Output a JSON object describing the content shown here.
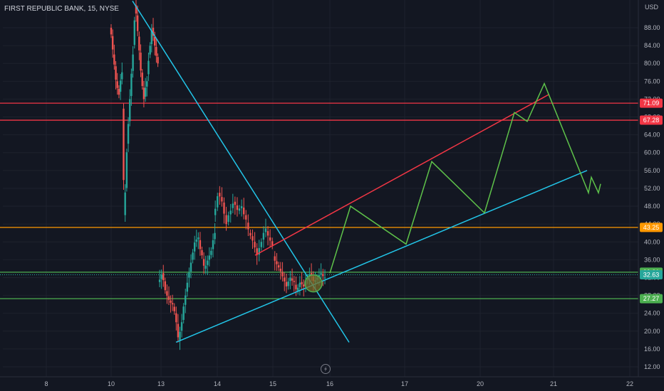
{
  "header": {
    "symbol_title": "FIRST REPUBLIC BANK, 15, NYSE",
    "currency": "USD"
  },
  "colors": {
    "background": "#131722",
    "grid": "#1e222d",
    "axis_text": "#b2b5be",
    "candle_up": "#26a69a",
    "candle_down": "#ef5350",
    "resistance_red": "#f23645",
    "level_orange": "#ff9800",
    "support_green": "#4caf50",
    "trend_cyan": "#22c5e8",
    "projection_green": "#5ec24a",
    "channel_red": "#f23645"
  },
  "chart_data": {
    "type": "candlestick",
    "title": "FIRST REPUBLIC BANK, 15, NYSE",
    "ylabel": "USD",
    "y_ticks": [
      12.0,
      16.0,
      20.0,
      24.0,
      28.0,
      32.0,
      36.0,
      40.0,
      44.0,
      48.0,
      52.0,
      56.0,
      60.0,
      64.0,
      68.0,
      72.0,
      76.0,
      80.0,
      84.0,
      88.0
    ],
    "x_ticks": [
      "8",
      "10",
      "13",
      "14",
      "15",
      "16",
      "17",
      "20",
      "21",
      "22"
    ],
    "ylim": [
      10,
      94
    ],
    "grid": true,
    "price_levels": [
      {
        "label": "71.09",
        "value": 71.09,
        "color": "#f23645"
      },
      {
        "label": "67.28",
        "value": 67.28,
        "color": "#f23645"
      },
      {
        "label": "43.25",
        "value": 43.25,
        "color": "#ff9800"
      },
      {
        "label": "33.21",
        "value": 33.21,
        "color": "#4caf50"
      },
      {
        "label": "32.63",
        "value": 32.63,
        "color": "#26a69a",
        "dotted": true
      },
      {
        "label": "27.27",
        "value": 27.27,
        "color": "#4caf50"
      }
    ],
    "price_path": [
      [
        "10",
        88
      ],
      [
        "10",
        82
      ],
      [
        "10",
        76
      ],
      [
        "10",
        73
      ],
      [
        "10",
        78
      ],
      [
        "10",
        46
      ],
      [
        "10",
        62
      ],
      [
        "10",
        72
      ],
      [
        "10",
        82
      ],
      [
        "10",
        93
      ],
      [
        "10",
        86
      ],
      [
        "10",
        78
      ],
      [
        "10",
        72
      ],
      [
        "10",
        76
      ],
      [
        "10",
        82
      ],
      [
        "10",
        88
      ],
      [
        "10",
        84
      ],
      [
        "10",
        80
      ],
      [
        "13",
        31
      ],
      [
        "13",
        33
      ],
      [
        "13",
        29
      ],
      [
        "13",
        27
      ],
      [
        "13",
        26
      ],
      [
        "13",
        24
      ],
      [
        "13",
        18
      ],
      [
        "13",
        22
      ],
      [
        "13",
        28
      ],
      [
        "13",
        32
      ],
      [
        "13",
        36
      ],
      [
        "13",
        40
      ],
      [
        "13",
        41
      ],
      [
        "13",
        37
      ],
      [
        "13",
        34
      ],
      [
        "13",
        36
      ],
      [
        "13",
        38
      ],
      [
        "13",
        42
      ],
      [
        "14",
        46
      ],
      [
        "14",
        51
      ],
      [
        "14",
        49
      ],
      [
        "14",
        44
      ],
      [
        "14",
        47
      ],
      [
        "14",
        49
      ],
      [
        "14",
        47
      ],
      [
        "14",
        48
      ],
      [
        "14",
        45
      ],
      [
        "14",
        42
      ],
      [
        "14",
        40
      ],
      [
        "14",
        37
      ],
      [
        "14",
        40
      ],
      [
        "14",
        43
      ],
      [
        "14",
        41
      ],
      [
        "14",
        39
      ],
      [
        "15",
        37
      ],
      [
        "15",
        35
      ],
      [
        "15",
        34
      ],
      [
        "15",
        32
      ],
      [
        "15",
        30
      ],
      [
        "15",
        32
      ],
      [
        "15",
        31
      ],
      [
        "15",
        29
      ],
      [
        "15",
        31
      ],
      [
        "15",
        30
      ],
      [
        "15",
        32
      ],
      [
        "15",
        33
      ],
      [
        "15",
        31
      ],
      [
        "15",
        32
      ],
      [
        "15",
        33
      ],
      [
        "15",
        32
      ]
    ],
    "trend_lines": [
      {
        "name": "downtrend",
        "from": [
          "10",
          94
        ],
        "to": [
          "16",
          17.5
        ],
        "color": "#22c5e8"
      },
      {
        "name": "uptrend-support",
        "from": [
          "13",
          17.5
        ],
        "to": [
          "21",
          56
        ],
        "color": "#22c5e8"
      },
      {
        "name": "channel-top",
        "from": [
          "14",
          37
        ],
        "to": [
          "21",
          73
        ],
        "color": "#f23645"
      }
    ],
    "projection_path": [
      [
        "16",
        33
      ],
      [
        "16",
        48
      ],
      [
        "17",
        39.5
      ],
      [
        "17",
        58
      ],
      [
        "20",
        46.5
      ],
      [
        "20",
        69
      ],
      [
        "21",
        67
      ],
      [
        "21",
        75.5
      ],
      [
        "22",
        51
      ],
      [
        "22",
        54.5
      ],
      [
        "22",
        51
      ],
      [
        "22",
        53
      ]
    ],
    "highlight": {
      "x": "15",
      "value": 30.7,
      "label": ""
    }
  }
}
